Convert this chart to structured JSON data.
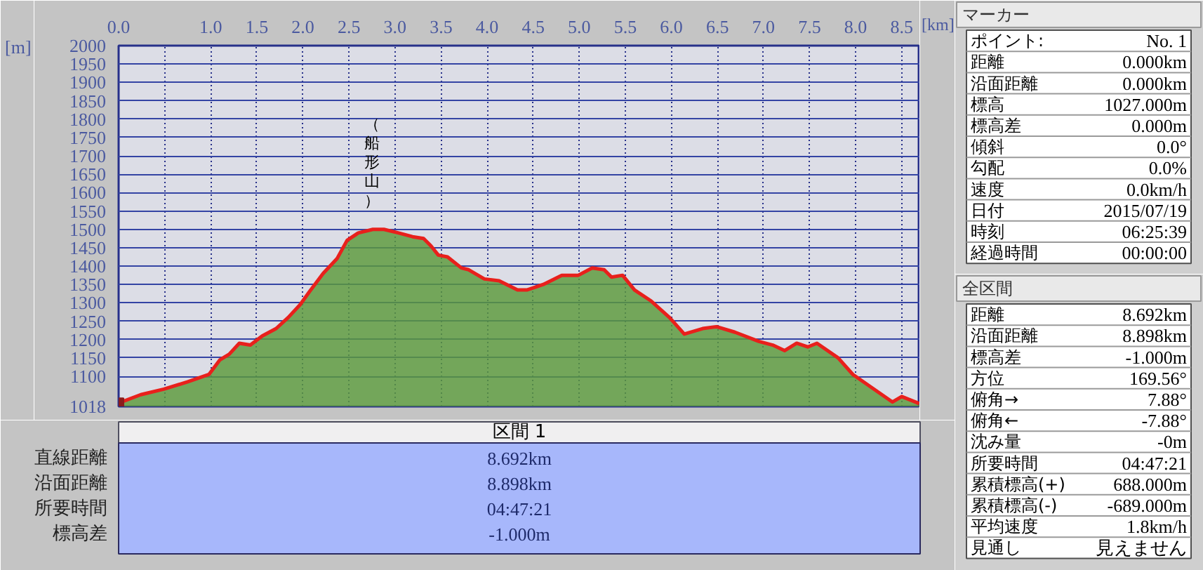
{
  "chart_data": [
    {
      "type": "area",
      "xlabel": "[km]",
      "ylabel": "[m]",
      "xlim": [
        0,
        8.7
      ],
      "ylim": [
        1018,
        2000
      ],
      "xticks": [
        {
          "value": 0,
          "label": "0.0"
        },
        {
          "value": 0.5,
          "label": null
        },
        {
          "value": 1,
          "label": "1.0"
        },
        1.5,
        {
          "value": 2,
          "label": "2.0"
        },
        2.5,
        {
          "value": 3,
          "label": "3.0"
        },
        3.5,
        {
          "value": 4,
          "label": "4.0"
        },
        4.5,
        {
          "value": 5,
          "label": "5.0"
        },
        5.5,
        {
          "value": 6,
          "label": "6.0"
        },
        6.5,
        {
          "value": 7,
          "label": "7.0"
        },
        7.5,
        {
          "value": 8,
          "label": "8.0"
        },
        8.5
      ],
      "yticks": [
        1018,
        1100,
        1150,
        1200,
        1250,
        1300,
        1350,
        1400,
        1450,
        1500,
        1550,
        1600,
        1650,
        1700,
        1750,
        1800,
        1850,
        1900,
        1950,
        2000
      ],
      "grid": true,
      "x": [
        0,
        0.24,
        0.49,
        0.75,
        0.98,
        1.1,
        1.2,
        1.31,
        1.43,
        1.56,
        1.71,
        1.84,
        1.97,
        2.07,
        2.22,
        2.37,
        2.48,
        2.6,
        2.76,
        2.88,
        3.04,
        3.19,
        3.31,
        3.39,
        3.47,
        3.57,
        3.72,
        3.8,
        3.97,
        4.13,
        4.33,
        4.43,
        4.61,
        4.81,
        4.99,
        5.14,
        5.27,
        5.35,
        5.47,
        5.6,
        5.78,
        5.98,
        6.14,
        6.34,
        6.49,
        6.69,
        6.95,
        7.1,
        7.23,
        7.36,
        7.48,
        7.58,
        7.81,
        7.97,
        8.17,
        8.4,
        8.5,
        8.69
      ],
      "series": [
        {
          "type": "area",
          "color": "#5b9a3b",
          "values": [
            1027,
            1050,
            1065,
            1085,
            1105,
            1145,
            1160,
            1190,
            1185,
            1210,
            1230,
            1260,
            1295,
            1330,
            1380,
            1420,
            1470,
            1490,
            1500,
            1500,
            1490,
            1480,
            1475,
            1455,
            1430,
            1425,
            1395,
            1390,
            1365,
            1360,
            1335,
            1335,
            1350,
            1375,
            1375,
            1395,
            1390,
            1370,
            1375,
            1335,
            1305,
            1260,
            1215,
            1230,
            1235,
            1220,
            1195,
            1185,
            1170,
            1190,
            1180,
            1190,
            1150,
            1105,
            1070,
            1030,
            1045,
            1026
          ]
        },
        {
          "type": "line",
          "color": "#e8201c",
          "values": [
            1027,
            1050,
            1065,
            1085,
            1105,
            1145,
            1160,
            1190,
            1185,
            1210,
            1230,
            1260,
            1295,
            1330,
            1380,
            1420,
            1470,
            1490,
            1500,
            1500,
            1490,
            1480,
            1475,
            1455,
            1430,
            1425,
            1395,
            1390,
            1365,
            1360,
            1335,
            1335,
            1350,
            1375,
            1375,
            1395,
            1390,
            1370,
            1375,
            1335,
            1305,
            1260,
            1215,
            1230,
            1235,
            1220,
            1195,
            1185,
            1170,
            1190,
            1180,
            1190,
            1150,
            1105,
            1070,
            1030,
            1045,
            1026
          ]
        },
        {
          "type": "scatter",
          "color": "#8b1c1c",
          "marker": "square",
          "x": [
            0
          ],
          "values": [
            1027
          ]
        }
      ],
      "annotations": [
        {
          "text": "（船形山）",
          "x": 2.75,
          "y": 1500
        }
      ]
    },
    {
      "type": "other",
      "title": "マーカー",
      "annotations": [
        "ポイント:",
        "No. 1",
        "距離",
        "0.000km",
        "沿面距離",
        "0.000km",
        "標高",
        "1027.000m",
        "標高差",
        "0.000m",
        "傾斜",
        "0.0°",
        "勾配",
        "0.0%",
        "速度",
        "0.0km/h",
        "日付",
        "2015/07/19",
        "時刻",
        "06:25:39",
        "経過時間",
        "00:00:00"
      ]
    },
    {
      "type": "other",
      "title": "区間 1",
      "annotations": [
        "直線距離",
        "8.692km",
        "沿面距離",
        "8.898km",
        "所要時間",
        "04:47:21",
        "標高差",
        "-1.000m"
      ]
    },
    {
      "type": "other",
      "title": "全区間",
      "annotations": [
        "距離",
        "8.692km",
        "沿面距離",
        "8.898km",
        "標高差",
        "-1.000m",
        "方位",
        "169.56°",
        "俯角→",
        "7.88°",
        "俯角←",
        "-7.88°",
        "沈み量",
        "-0m",
        "所要時間",
        "04:47:21",
        "累積標高(+)",
        "688.000m",
        "累積標高(-)",
        "-689.000m",
        "平均速度",
        "1.8km/h",
        "見通し",
        "見えません"
      ]
    }
  ]
}
